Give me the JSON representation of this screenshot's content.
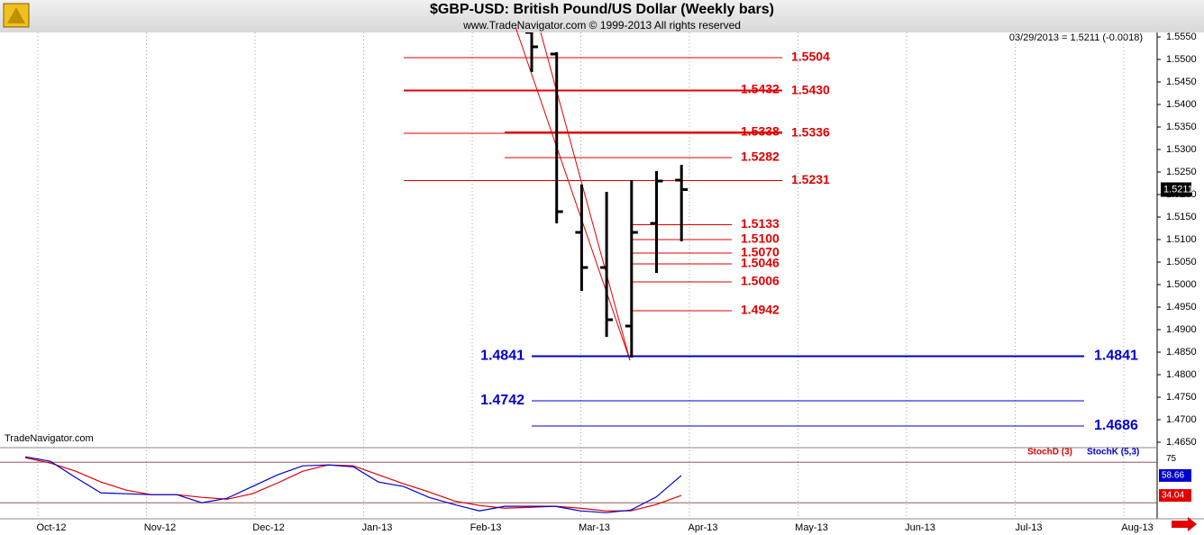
{
  "chart_data": {
    "type": "ohlc",
    "title": "$GBP-USD:  British Pound/US Dollar  (Weekly bars)",
    "subtitle": "www.TradeNavigator.com © 1999-2013 All rights reserved",
    "quote": "03/29/2013 = 1.5211 (-0.0018)",
    "watermark": "TradeNavigator.com",
    "categories": [
      "Oct-12",
      "Nov-12",
      "Dec-12",
      "Jan-13",
      "Feb-13",
      "Mar-13",
      "Apr-13",
      "May-13",
      "Jun-13",
      "Jul-13",
      "Aug-13"
    ],
    "ylim": [
      1.464,
      1.556
    ],
    "yticks": [
      {
        "value": 1.465,
        "label": "1.4650"
      },
      {
        "value": 1.47,
        "label": "1.4700"
      },
      {
        "value": 1.475,
        "label": "1.4750"
      },
      {
        "value": 1.48,
        "label": "1.4800"
      },
      {
        "value": 1.485,
        "label": "1.4850"
      },
      {
        "value": 1.49,
        "label": "1.4900"
      },
      {
        "value": 1.495,
        "label": "1.4950"
      },
      {
        "value": 1.5,
        "label": "1.5000"
      },
      {
        "value": 1.505,
        "label": "1.5050"
      },
      {
        "value": 1.51,
        "label": "1.5100"
      },
      {
        "value": 1.515,
        "label": "1.5150"
      },
      {
        "value": 1.52,
        "label": "1.5200"
      },
      {
        "value": 1.525,
        "label": "1.5250"
      },
      {
        "value": 1.53,
        "label": "1.5300"
      },
      {
        "value": 1.535,
        "label": "1.5350"
      },
      {
        "value": 1.54,
        "label": "1.5400"
      },
      {
        "value": 1.545,
        "label": "1.5450"
      },
      {
        "value": 1.55,
        "label": "1.5500"
      },
      {
        "value": 1.555,
        "label": "1.5550"
      }
    ],
    "bars": {
      "open": [
        1.556,
        1.5512,
        1.5116,
        1.5038,
        1.4908,
        1.5136,
        1.5232
      ],
      "high": [
        1.556,
        1.5516,
        1.5222,
        1.5206,
        1.5232,
        1.5252,
        1.5266
      ],
      "low": [
        1.5472,
        1.5136,
        1.4986,
        1.4884,
        1.4838,
        1.5026,
        1.5096
      ],
      "close": [
        1.5528,
        1.5162,
        1.5038,
        1.4922,
        1.5116,
        1.523,
        1.5211
      ],
      "color": "#000000"
    },
    "last": 1.5211,
    "levels": {
      "color": "#e00000",
      "items": [
        {
          "value": 1.5504,
          "label": "1.5504"
        },
        {
          "value": 1.5432,
          "label": "1.5432"
        },
        {
          "value": 1.543,
          "label": "1.5430"
        },
        {
          "value": 1.5338,
          "label": "1.5338"
        },
        {
          "value": 1.5336,
          "label": "1.5336"
        },
        {
          "value": 1.5282,
          "label": "1.5282"
        },
        {
          "value": 1.5231,
          "label": "1.5231"
        },
        {
          "value": 1.5133,
          "label": "1.5133"
        },
        {
          "value": 1.51,
          "label": "1.5100"
        },
        {
          "value": 1.507,
          "label": "1.5070"
        },
        {
          "value": 1.5046,
          "label": "1.5046"
        },
        {
          "value": 1.5006,
          "label": "1.5006"
        },
        {
          "value": 1.4942,
          "label": "1.4942"
        }
      ]
    },
    "support_levels": {
      "color": "#0000cc",
      "items": [
        {
          "value": 1.4841,
          "label": "1.4841"
        },
        {
          "value": 1.4742,
          "label": "1.4742"
        },
        {
          "value": 1.4686,
          "label": "1.4686"
        }
      ]
    },
    "stochastic": {
      "ylim": [
        5,
        83
      ],
      "yticks": [
        25,
        75
      ],
      "series": [
        {
          "name": "StochD (3)",
          "color": "#e00000",
          "values": [
            80.6,
            73.9,
            63.9,
            50.6,
            40.6,
            35,
            35,
            31.7,
            29.4,
            36.1,
            49.4,
            63.9,
            71.7,
            70.6,
            59.4,
            48.3,
            38.3,
            27.2,
            21.7,
            18.3,
            19.4,
            20.6,
            18.3,
            15,
            15,
            22.8,
            34.04
          ]
        },
        {
          "name": "StochK (5,3)",
          "color": "#0000cc",
          "values": [
            81.7,
            76.1,
            56.1,
            37.2,
            36.1,
            35,
            35,
            25,
            30.6,
            45,
            59.4,
            70.6,
            71.7,
            69.4,
            50.6,
            45,
            31.7,
            22.8,
            15,
            20.6,
            20.6,
            20.6,
            15,
            12.8,
            16,
            32,
            58.66
          ]
        }
      ]
    }
  }
}
